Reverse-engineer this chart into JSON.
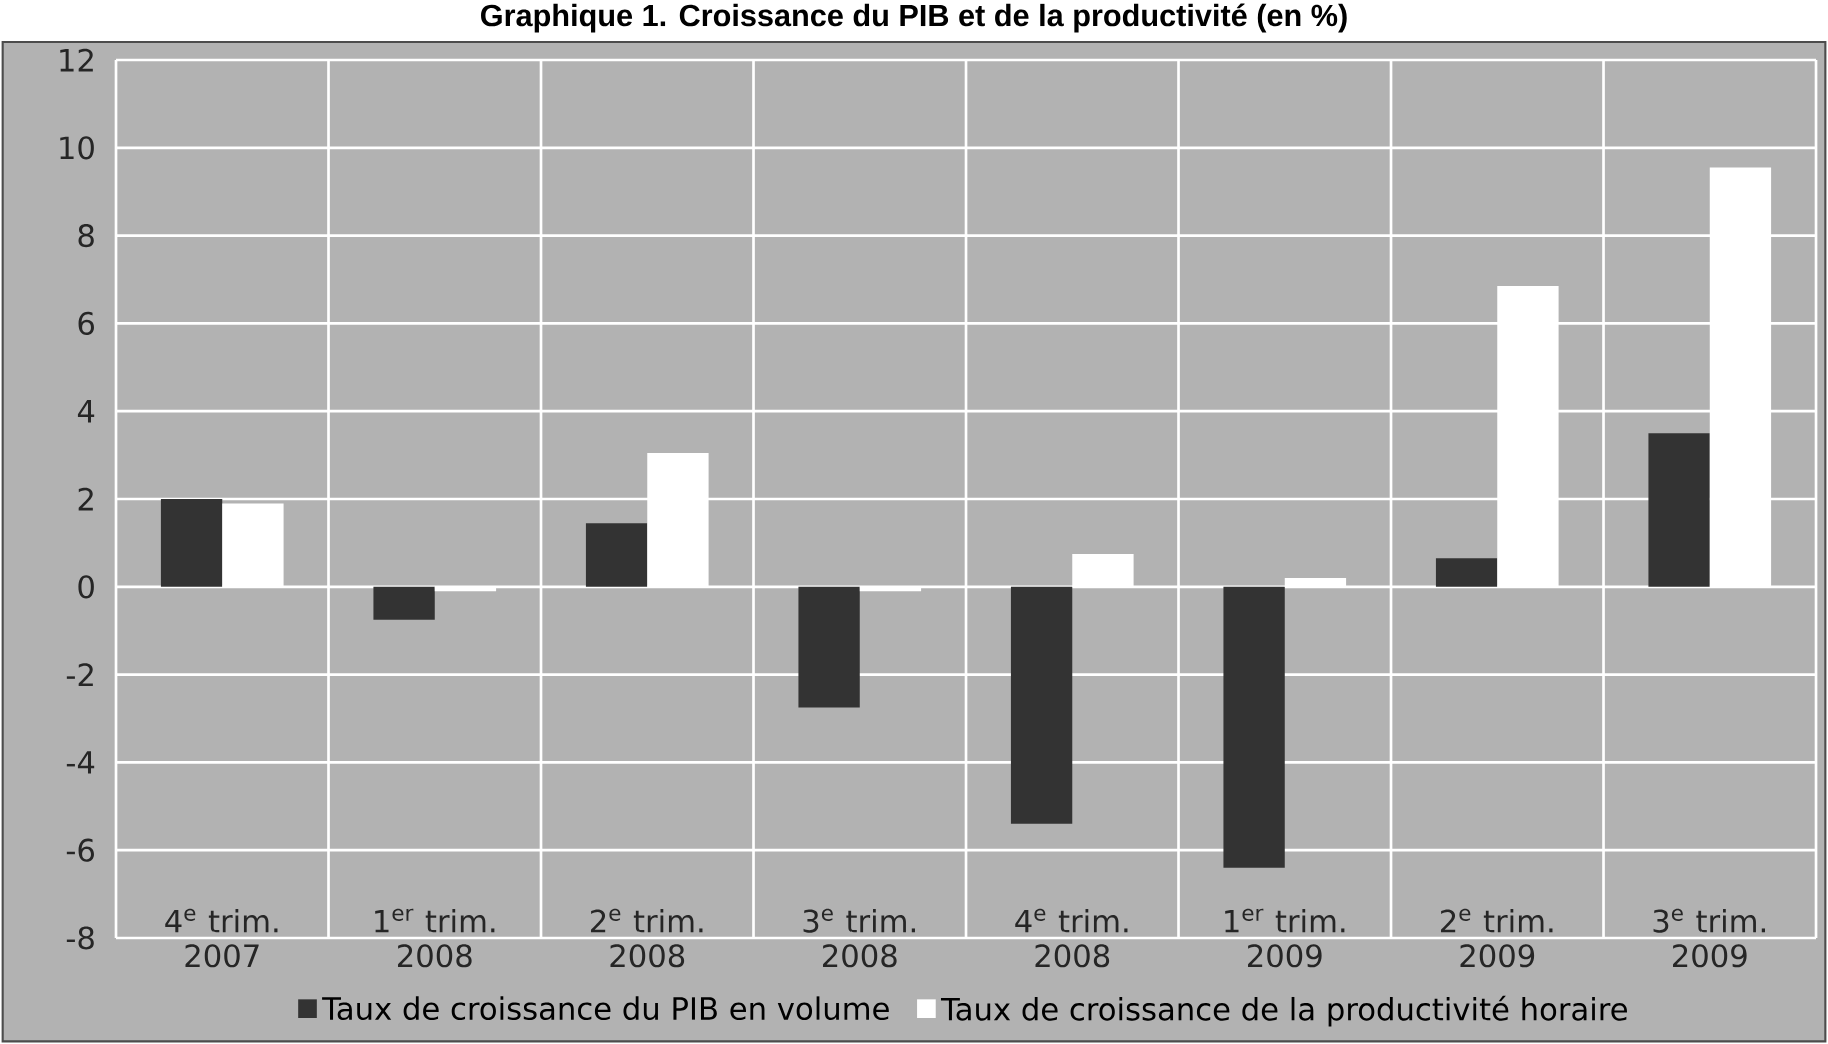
{
  "chart_data": {
    "type": "bar",
    "title": "Graphique 1. Croissance du PIB et de la productivité (en %)",
    "categories": [
      "4$^{e}$ trim. 2007",
      "1$^{er}$ trim. 2008",
      "2$^{e}$ trim. 2008",
      "3$^{e}$ trim. 2008",
      "4$^{e}$ trim. 2008",
      "1$^{er}$ trim. 2009",
      "2$^{e}$ trim. 2009",
      "3$^{e}$ trim. 2009"
    ],
    "series": [
      {
        "name": "Taux de croissance du PIB en volume",
        "color": "#333333",
        "values": [
          2.0,
          -0.75,
          1.45,
          -2.75,
          -5.4,
          -6.4,
          0.65,
          3.5
        ]
      },
      {
        "name": "Taux de croissance de la productivité horaire",
        "color": "#ffffff",
        "values": [
          1.9,
          -0.1,
          3.05,
          -0.1,
          0.75,
          0.2,
          6.85,
          9.55
        ]
      }
    ],
    "ylim": [
      -8,
      12
    ],
    "yticks": [
      -8,
      -6,
      -4,
      -2,
      0,
      2,
      4,
      6,
      8,
      10,
      12
    ],
    "grid": true,
    "legend": "bottom"
  }
}
